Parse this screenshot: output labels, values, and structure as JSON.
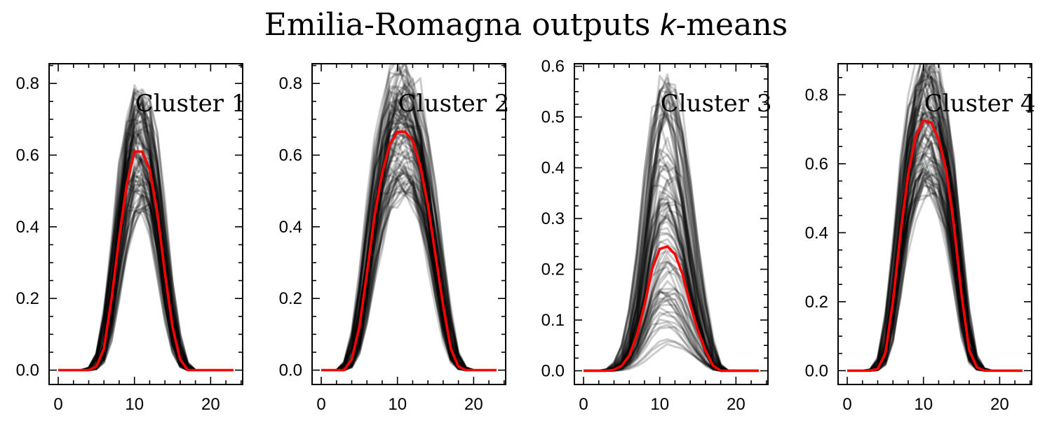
{
  "figure": {
    "title_prefix": "Emilia-Romagna outputs ",
    "title_k": "k",
    "title_suffix": "-means"
  },
  "chart_data": [
    {
      "type": "line",
      "label": "Cluster 1",
      "x": [
        0,
        1,
        2,
        3,
        4,
        5,
        6,
        7,
        8,
        9,
        10,
        11,
        12,
        13,
        14,
        15,
        16,
        17,
        18,
        19,
        20,
        21,
        22,
        23
      ],
      "xlim": [
        -1.2,
        24.2
      ],
      "ylim": [
        -0.04,
        0.855
      ],
      "xticks": [
        0,
        10,
        20
      ],
      "yticks": [
        0.0,
        0.2,
        0.4,
        0.6,
        0.8
      ],
      "ytick_labels": [
        "0.0",
        "0.2",
        "0.4",
        "0.6",
        "0.8"
      ],
      "centroid_color": "#ff0000",
      "member_color": "#000000",
      "centroid": [
        0,
        0,
        0,
        0,
        0,
        0.01,
        0.06,
        0.2,
        0.37,
        0.52,
        0.61,
        0.61,
        0.56,
        0.44,
        0.27,
        0.12,
        0.03,
        0,
        0,
        0,
        0,
        0,
        0,
        0
      ],
      "member_count": 90
    },
    {
      "type": "line",
      "label": "Cluster 2",
      "x": [
        0,
        1,
        2,
        3,
        4,
        5,
        6,
        7,
        8,
        9,
        10,
        11,
        12,
        13,
        14,
        15,
        16,
        17,
        18,
        19,
        20,
        21,
        22,
        23
      ],
      "xlim": [
        -1.2,
        24.2
      ],
      "ylim": [
        -0.04,
        0.855
      ],
      "xticks": [
        0,
        10,
        20
      ],
      "yticks": [
        0.0,
        0.2,
        0.4,
        0.6,
        0.8
      ],
      "ytick_labels": [
        "0.0",
        "0.2",
        "0.4",
        "0.6",
        "0.8"
      ],
      "centroid_color": "#ff0000",
      "member_color": "#000000",
      "centroid": [
        0,
        0,
        0,
        0,
        0.03,
        0.12,
        0.27,
        0.43,
        0.55,
        0.63,
        0.665,
        0.665,
        0.64,
        0.57,
        0.46,
        0.32,
        0.18,
        0.06,
        0.01,
        0,
        0,
        0,
        0,
        0
      ],
      "member_count": 90
    },
    {
      "type": "line",
      "label": "Cluster 3",
      "x": [
        0,
        1,
        2,
        3,
        4,
        5,
        6,
        7,
        8,
        9,
        10,
        11,
        12,
        13,
        14,
        15,
        16,
        17,
        18,
        19,
        20,
        21,
        22,
        23
      ],
      "xlim": [
        -1.2,
        24.2
      ],
      "ylim": [
        -0.027,
        0.605
      ],
      "xticks": [
        0,
        10,
        20
      ],
      "yticks": [
        0.0,
        0.1,
        0.2,
        0.3,
        0.4,
        0.5,
        0.6
      ],
      "ytick_labels": [
        "0.0",
        "0.1",
        "0.2",
        "0.3",
        "0.4",
        "0.5",
        "0.6"
      ],
      "centroid_color": "#ff0000",
      "member_color": "#000000",
      "centroid": [
        0,
        0,
        0,
        0,
        0.002,
        0.01,
        0.03,
        0.07,
        0.13,
        0.2,
        0.24,
        0.245,
        0.23,
        0.19,
        0.13,
        0.08,
        0.04,
        0.01,
        0,
        0,
        0,
        0,
        0,
        0
      ],
      "member_count": 90
    },
    {
      "type": "line",
      "label": "Cluster 4",
      "x": [
        0,
        1,
        2,
        3,
        4,
        5,
        6,
        7,
        8,
        9,
        10,
        11,
        12,
        13,
        14,
        15,
        16,
        17,
        18,
        19,
        20,
        21,
        22,
        23
      ],
      "xlim": [
        -1.2,
        24.2
      ],
      "ylim": [
        -0.04,
        0.89
      ],
      "xticks": [
        0,
        10,
        20
      ],
      "yticks": [
        0.0,
        0.2,
        0.4,
        0.6,
        0.8
      ],
      "ytick_labels": [
        "0.0",
        "0.2",
        "0.4",
        "0.6",
        "0.8"
      ],
      "centroid_color": "#ff0000",
      "member_color": "#000000",
      "centroid": [
        0,
        0,
        0,
        0,
        0.005,
        0.05,
        0.2,
        0.4,
        0.57,
        0.68,
        0.725,
        0.72,
        0.67,
        0.58,
        0.42,
        0.22,
        0.06,
        0.01,
        0,
        0,
        0,
        0,
        0,
        0
      ],
      "member_count": 90
    }
  ]
}
